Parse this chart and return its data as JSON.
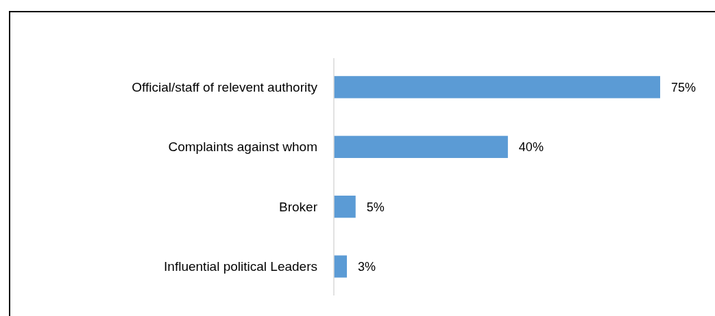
{
  "chart_data": {
    "type": "bar",
    "orientation": "horizontal",
    "categories": [
      "Official/staff of relevent authority",
      "Complaints against whom",
      "Broker",
      "Influential political Leaders"
    ],
    "values": [
      75,
      40,
      5,
      3
    ],
    "color": "#5b9bd5",
    "data_labels": true,
    "value_labels": [
      "75%",
      "40%",
      "5%",
      "3%"
    ]
  }
}
